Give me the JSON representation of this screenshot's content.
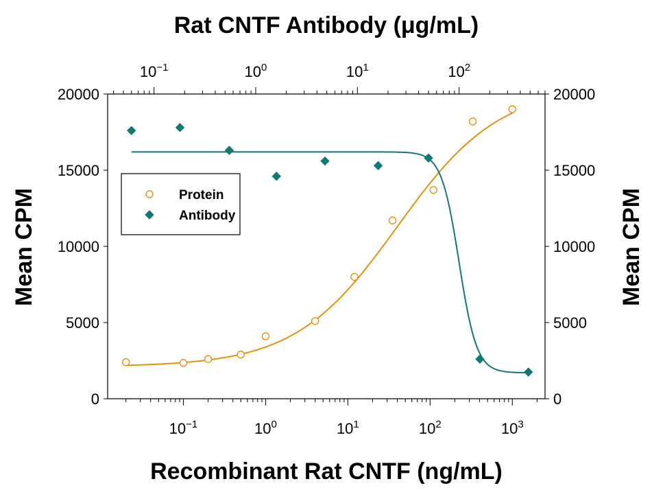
{
  "chart_data": {
    "type": "scatter",
    "top_title": "Rat CNTF Antibody (μg/mL)",
    "xlabel": "Recombinant Rat CNTF (ng/mL)",
    "ylabel_left": "Mean CPM",
    "ylabel_right": "Mean CPM",
    "x_scale": "log",
    "xlim": [
      0.012,
      2500
    ],
    "ylim": [
      0,
      20000
    ],
    "y_ticks": [
      0,
      5000,
      10000,
      15000,
      20000
    ],
    "y_tick_labels": [
      "0",
      "5000",
      "10000",
      "15000",
      "20000"
    ],
    "x_bottom_ticks": [
      {
        "value": 0.1,
        "base": "10",
        "exp": "−1"
      },
      {
        "value": 1,
        "base": "10",
        "exp": "0"
      },
      {
        "value": 10,
        "base": "10",
        "exp": "1"
      },
      {
        "value": 100,
        "base": "10",
        "exp": "2"
      },
      {
        "value": 1000,
        "base": "10",
        "exp": "3"
      }
    ],
    "x_top_scale": "log",
    "x_top_lim": [
      0.035,
      700
    ],
    "x_top_ticks": [
      {
        "value": 0.1,
        "base": "10",
        "exp": "−1"
      },
      {
        "value": 1,
        "base": "10",
        "exp": "0"
      },
      {
        "value": 10,
        "base": "10",
        "exp": "1"
      },
      {
        "value": 100,
        "base": "10",
        "exp": "2"
      }
    ],
    "legend": {
      "position": "upper-left",
      "entries": [
        "Protein",
        "Antibody"
      ]
    },
    "series": [
      {
        "name": "Protein",
        "marker": "open-circle",
        "color": "#e8900c",
        "axis": "bottom",
        "x": [
          0.02,
          0.1,
          0.2,
          0.5,
          1,
          4,
          12,
          35,
          110,
          330,
          1000
        ],
        "y": [
          2400,
          2350,
          2600,
          2900,
          4100,
          5100,
          8000,
          11700,
          13700,
          18200,
          19000
        ],
        "fit": {
          "model": "4pl",
          "bottom": 2100,
          "top": 20500,
          "ec50": 40,
          "hill": 0.7
        }
      },
      {
        "name": "Antibody",
        "marker": "filled-diamond",
        "color": "#0f7a72",
        "axis": "top",
        "x": [
          0.06,
          0.18,
          0.55,
          1.6,
          4.8,
          16,
          50,
          160,
          480
        ],
        "y": [
          17600,
          17800,
          16300,
          14600,
          15600,
          15300,
          15800,
          2600,
          1750
        ],
        "fit": {
          "model": "4pl",
          "bottom": 1700,
          "top": 16200,
          "ic50": 100,
          "hill": 5
        }
      }
    ]
  }
}
